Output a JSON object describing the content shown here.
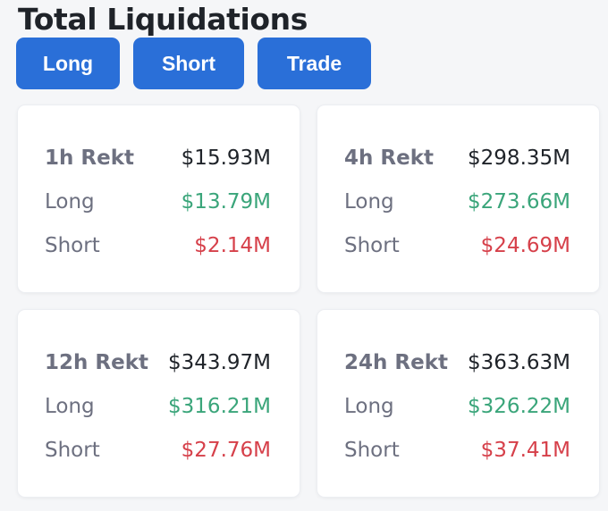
{
  "title": "Total Liquidations",
  "tabs": [
    {
      "label": "Long"
    },
    {
      "label": "Short"
    },
    {
      "label": "Trade"
    }
  ],
  "cards": [
    {
      "period": "1h Rekt",
      "total": "$15.93M",
      "long_label": "Long",
      "long": "$13.79M",
      "short_label": "Short",
      "short": "$2.14M"
    },
    {
      "period": "4h Rekt",
      "total": "$298.35M",
      "long_label": "Long",
      "long": "$273.66M",
      "short_label": "Short",
      "short": "$24.69M"
    },
    {
      "period": "12h Rekt",
      "total": "$343.97M",
      "long_label": "Long",
      "long": "$316.21M",
      "short_label": "Short",
      "short": "$27.76M"
    },
    {
      "period": "24h Rekt",
      "total": "$363.63M",
      "long_label": "Long",
      "long": "$326.22M",
      "short_label": "Short",
      "short": "$37.41M"
    }
  ],
  "colors": {
    "accent": "#2a6fd8",
    "long": "#3aa57a",
    "short": "#d6404a"
  }
}
